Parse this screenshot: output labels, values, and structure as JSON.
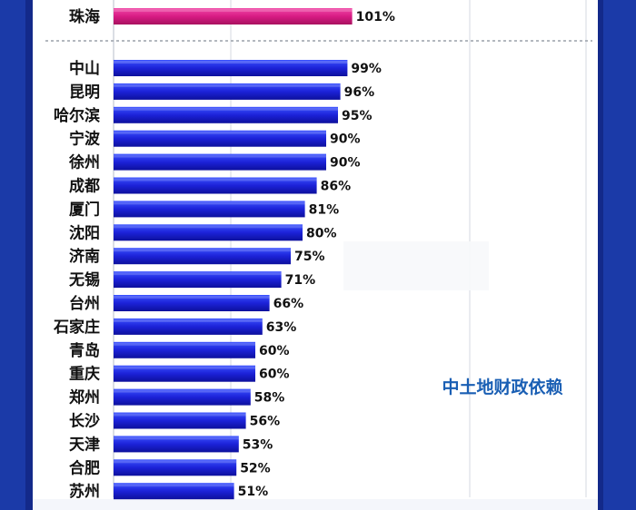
{
  "chart_data": {
    "type": "bar",
    "orientation": "horizontal",
    "xlim": [
      0,
      200
    ],
    "grid": true,
    "top_group": {
      "color": "#d81b84",
      "categories": [
        "珠海"
      ],
      "values": [
        101
      ],
      "labels": [
        "101%"
      ]
    },
    "main_group": {
      "color": "#1e2be0",
      "categories": [
        "中山",
        "昆明",
        "哈尔滨",
        "宁波",
        "徐州",
        "成都",
        "厦门",
        "沈阳",
        "济南",
        "无锡",
        "台州",
        "石家庄",
        "青岛",
        "重庆",
        "郑州",
        "长沙",
        "天津",
        "合肥",
        "苏州"
      ],
      "values": [
        99,
        96,
        95,
        90,
        90,
        86,
        81,
        80,
        75,
        71,
        66,
        63,
        60,
        60,
        58,
        56,
        53,
        52,
        51
      ],
      "labels": [
        "99%",
        "96%",
        "95%",
        "90%",
        "90%",
        "86%",
        "81%",
        "80%",
        "75%",
        "71%",
        "66%",
        "63%",
        "60%",
        "60%",
        "58%",
        "56%",
        "53%",
        "52%",
        "51%"
      ]
    },
    "annotation": "中土地财政依赖",
    "annotation_color": "#1a5fb4"
  }
}
